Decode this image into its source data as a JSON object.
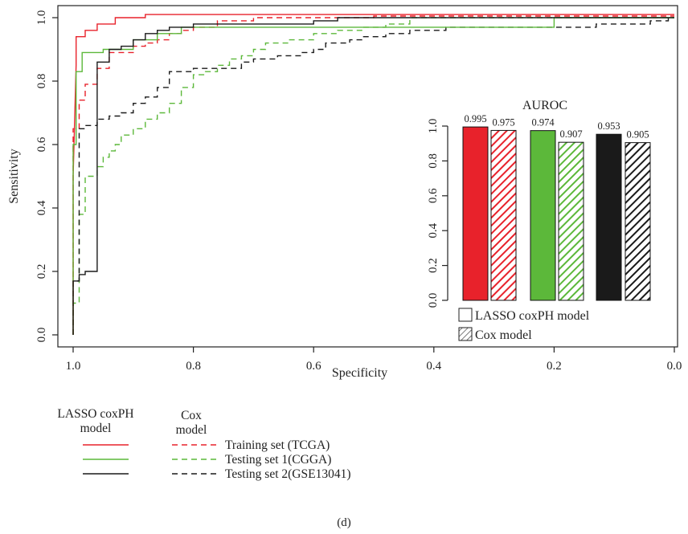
{
  "figure_label": "(d)",
  "colors": {
    "training": "#e8222b",
    "testing1": "#5cb83a",
    "testing2": "#1a1a1a"
  },
  "legend": {
    "header_lasso": [
      "LASSO coxPH",
      "model"
    ],
    "header_cox": [
      "Cox",
      "model"
    ],
    "rows": [
      {
        "label": "Training set (TCGA)",
        "color": "#e8222b"
      },
      {
        "label": "Testing set 1(CGGA)",
        "color": "#5cb83a"
      },
      {
        "label": "Testing set 2(GSE13041)",
        "color": "#1a1a1a"
      }
    ]
  },
  "chart_data": [
    {
      "type": "line",
      "xlabel": "Specificity",
      "ylabel": "Sensitivity",
      "xlim": [
        1.0,
        0.0
      ],
      "ylim": [
        0.0,
        1.0
      ],
      "x_reversed": true,
      "xticks": [
        "1.0",
        "0.8",
        "0.6",
        "0.4",
        "0.2",
        "0.0"
      ],
      "yticks": [
        "0.0",
        "0.2",
        "0.4",
        "0.6",
        "0.8",
        "1.0"
      ],
      "series": [
        {
          "name": "Training set (TCGA)",
          "model": "LASSO coxPH",
          "color": "#e8222b",
          "dash": false,
          "points": [
            [
              1.0,
              0.0
            ],
            [
              1.0,
              0.5
            ],
            [
              0.995,
              0.85
            ],
            [
              0.995,
              0.94
            ],
            [
              0.98,
              0.94
            ],
            [
              0.98,
              0.96
            ],
            [
              0.96,
              0.96
            ],
            [
              0.96,
              0.98
            ],
            [
              0.93,
              0.98
            ],
            [
              0.93,
              1.0
            ],
            [
              0.88,
              1.0
            ],
            [
              0.88,
              1.01
            ],
            [
              0.0,
              1.01
            ]
          ]
        },
        {
          "name": "Testing set 1(CGGA)",
          "model": "LASSO coxPH",
          "color": "#5cb83a",
          "dash": false,
          "points": [
            [
              1.0,
              0.0
            ],
            [
              1.0,
              0.6
            ],
            [
              0.995,
              0.6
            ],
            [
              0.995,
              0.83
            ],
            [
              0.985,
              0.83
            ],
            [
              0.985,
              0.89
            ],
            [
              0.95,
              0.89
            ],
            [
              0.95,
              0.9
            ],
            [
              0.9,
              0.9
            ],
            [
              0.9,
              0.93
            ],
            [
              0.86,
              0.93
            ],
            [
              0.86,
              0.95
            ],
            [
              0.82,
              0.95
            ],
            [
              0.82,
              0.97
            ],
            [
              0.2,
              0.97
            ],
            [
              0.2,
              1.0
            ],
            [
              0.0,
              1.0
            ]
          ]
        },
        {
          "name": "Testing set 2(GSE13041)",
          "model": "LASSO coxPH",
          "color": "#1a1a1a",
          "dash": false,
          "points": [
            [
              1.0,
              0.0
            ],
            [
              1.0,
              0.17
            ],
            [
              0.99,
              0.17
            ],
            [
              0.99,
              0.19
            ],
            [
              0.98,
              0.19
            ],
            [
              0.98,
              0.2
            ],
            [
              0.96,
              0.2
            ],
            [
              0.96,
              0.86
            ],
            [
              0.94,
              0.86
            ],
            [
              0.94,
              0.9
            ],
            [
              0.92,
              0.9
            ],
            [
              0.92,
              0.91
            ],
            [
              0.9,
              0.91
            ],
            [
              0.9,
              0.93
            ],
            [
              0.88,
              0.93
            ],
            [
              0.88,
              0.95
            ],
            [
              0.86,
              0.95
            ],
            [
              0.86,
              0.96
            ],
            [
              0.84,
              0.96
            ],
            [
              0.84,
              0.97
            ],
            [
              0.8,
              0.97
            ],
            [
              0.8,
              0.98
            ],
            [
              0.6,
              0.98
            ],
            [
              0.6,
              0.99
            ],
            [
              0.56,
              0.99
            ],
            [
              0.56,
              1.0
            ],
            [
              0.0,
              1.0
            ]
          ]
        },
        {
          "name": "Training set (TCGA)",
          "model": "Cox",
          "color": "#e8222b",
          "dash": true,
          "points": [
            [
              1.0,
              0.0
            ],
            [
              1.0,
              0.65
            ],
            [
              0.99,
              0.65
            ],
            [
              0.99,
              0.74
            ],
            [
              0.98,
              0.74
            ],
            [
              0.98,
              0.79
            ],
            [
              0.96,
              0.79
            ],
            [
              0.96,
              0.84
            ],
            [
              0.94,
              0.84
            ],
            [
              0.94,
              0.89
            ],
            [
              0.9,
              0.89
            ],
            [
              0.9,
              0.91
            ],
            [
              0.88,
              0.91
            ],
            [
              0.88,
              0.92
            ],
            [
              0.86,
              0.92
            ],
            [
              0.86,
              0.93
            ],
            [
              0.84,
              0.93
            ],
            [
              0.84,
              0.95
            ],
            [
              0.82,
              0.95
            ],
            [
              0.82,
              0.96
            ],
            [
              0.8,
              0.96
            ],
            [
              0.8,
              0.97
            ],
            [
              0.76,
              0.97
            ],
            [
              0.76,
              0.99
            ],
            [
              0.7,
              0.99
            ],
            [
              0.7,
              1.0
            ],
            [
              0.5,
              1.0
            ],
            [
              0.5,
              1.005
            ],
            [
              0.0,
              1.005
            ]
          ]
        },
        {
          "name": "Testing set 1(CGGA)",
          "model": "Cox",
          "color": "#5cb83a",
          "dash": true,
          "points": [
            [
              1.0,
              0.0
            ],
            [
              1.0,
              0.1
            ],
            [
              0.99,
              0.1
            ],
            [
              0.99,
              0.38
            ],
            [
              0.98,
              0.38
            ],
            [
              0.98,
              0.5
            ],
            [
              0.96,
              0.5
            ],
            [
              0.96,
              0.53
            ],
            [
              0.95,
              0.53
            ],
            [
              0.95,
              0.56
            ],
            [
              0.94,
              0.56
            ],
            [
              0.94,
              0.58
            ],
            [
              0.93,
              0.58
            ],
            [
              0.93,
              0.6
            ],
            [
              0.92,
              0.6
            ],
            [
              0.92,
              0.63
            ],
            [
              0.9,
              0.63
            ],
            [
              0.9,
              0.65
            ],
            [
              0.88,
              0.65
            ],
            [
              0.88,
              0.68
            ],
            [
              0.86,
              0.68
            ],
            [
              0.86,
              0.7
            ],
            [
              0.84,
              0.7
            ],
            [
              0.84,
              0.73
            ],
            [
              0.82,
              0.73
            ],
            [
              0.82,
              0.78
            ],
            [
              0.8,
              0.78
            ],
            [
              0.8,
              0.82
            ],
            [
              0.78,
              0.82
            ],
            [
              0.78,
              0.83
            ],
            [
              0.76,
              0.83
            ],
            [
              0.76,
              0.85
            ],
            [
              0.74,
              0.85
            ],
            [
              0.74,
              0.87
            ],
            [
              0.72,
              0.87
            ],
            [
              0.72,
              0.88
            ],
            [
              0.7,
              0.88
            ],
            [
              0.7,
              0.9
            ],
            [
              0.68,
              0.9
            ],
            [
              0.68,
              0.92
            ],
            [
              0.64,
              0.92
            ],
            [
              0.64,
              0.93
            ],
            [
              0.6,
              0.93
            ],
            [
              0.6,
              0.95
            ],
            [
              0.56,
              0.95
            ],
            [
              0.56,
              0.96
            ],
            [
              0.52,
              0.96
            ],
            [
              0.52,
              0.97
            ],
            [
              0.48,
              0.97
            ],
            [
              0.48,
              0.98
            ],
            [
              0.44,
              0.98
            ],
            [
              0.44,
              1.0
            ],
            [
              0.0,
              1.0
            ]
          ]
        },
        {
          "name": "Testing set 2(GSE13041)",
          "model": "Cox",
          "color": "#1a1a1a",
          "dash": true,
          "points": [
            [
              1.0,
              0.0
            ],
            [
              1.0,
              0.17
            ],
            [
              0.99,
              0.17
            ],
            [
              0.99,
              0.65
            ],
            [
              0.98,
              0.65
            ],
            [
              0.98,
              0.66
            ],
            [
              0.96,
              0.66
            ],
            [
              0.96,
              0.68
            ],
            [
              0.94,
              0.68
            ],
            [
              0.94,
              0.69
            ],
            [
              0.92,
              0.69
            ],
            [
              0.92,
              0.7
            ],
            [
              0.9,
              0.7
            ],
            [
              0.9,
              0.73
            ],
            [
              0.88,
              0.73
            ],
            [
              0.88,
              0.75
            ],
            [
              0.86,
              0.75
            ],
            [
              0.86,
              0.78
            ],
            [
              0.84,
              0.78
            ],
            [
              0.84,
              0.83
            ],
            [
              0.8,
              0.83
            ],
            [
              0.8,
              0.84
            ],
            [
              0.72,
              0.84
            ],
            [
              0.72,
              0.86
            ],
            [
              0.7,
              0.86
            ],
            [
              0.7,
              0.87
            ],
            [
              0.66,
              0.87
            ],
            [
              0.66,
              0.88
            ],
            [
              0.62,
              0.88
            ],
            [
              0.62,
              0.89
            ],
            [
              0.6,
              0.89
            ],
            [
              0.6,
              0.9
            ],
            [
              0.58,
              0.9
            ],
            [
              0.58,
              0.92
            ],
            [
              0.54,
              0.92
            ],
            [
              0.54,
              0.93
            ],
            [
              0.52,
              0.93
            ],
            [
              0.52,
              0.94
            ],
            [
              0.48,
              0.94
            ],
            [
              0.48,
              0.95
            ],
            [
              0.44,
              0.95
            ],
            [
              0.44,
              0.96
            ],
            [
              0.38,
              0.96
            ],
            [
              0.38,
              0.97
            ],
            [
              0.13,
              0.97
            ],
            [
              0.13,
              0.98
            ],
            [
              0.04,
              0.98
            ],
            [
              0.04,
              0.99
            ],
            [
              0.01,
              0.99
            ],
            [
              0.01,
              1.0
            ]
          ]
        }
      ]
    },
    {
      "type": "bar",
      "title": "AUROC",
      "ylim": [
        0.0,
        1.0
      ],
      "yticks": [
        "0.0",
        "0.2",
        "0.4",
        "0.6",
        "0.8",
        "1.0"
      ],
      "bars": [
        {
          "value": 0.995,
          "label": "0.995",
          "color": "#e8222b",
          "hatched": false
        },
        {
          "value": 0.975,
          "label": "0.975",
          "color": "#e8222b",
          "hatched": true
        },
        {
          "value": 0.974,
          "label": "0.974",
          "color": "#5cb83a",
          "hatched": false
        },
        {
          "value": 0.907,
          "label": "0.907",
          "color": "#5cb83a",
          "hatched": true
        },
        {
          "value": 0.953,
          "label": "0.953",
          "color": "#1a1a1a",
          "hatched": false
        },
        {
          "value": 0.905,
          "label": "0.905",
          "color": "#1a1a1a",
          "hatched": true
        }
      ],
      "legend": [
        {
          "label": "LASSO coxPH model",
          "hatched": false
        },
        {
          "label": "Cox model",
          "hatched": true
        }
      ]
    }
  ]
}
